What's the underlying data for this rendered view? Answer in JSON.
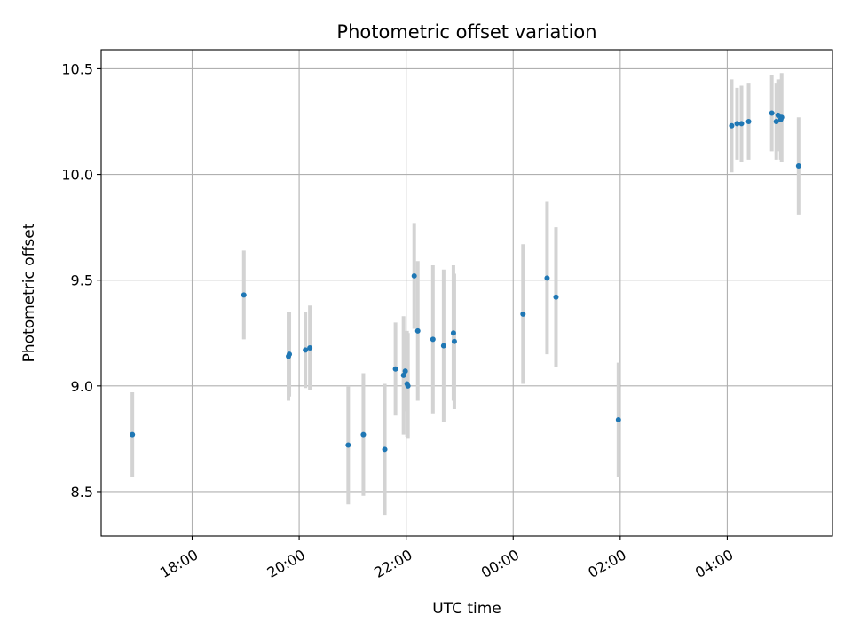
{
  "chart_data": {
    "type": "scatter",
    "title": "Photometric offset variation",
    "xlabel": "UTC time",
    "ylabel": "Photometric offset",
    "x_ticks": [
      "18:00",
      "20:00",
      "22:00",
      "00:00",
      "02:00",
      "04:00"
    ],
    "y_ticks": [
      "8.5",
      "9.0",
      "9.5",
      "10.0",
      "10.5"
    ],
    "xlim": [
      "16:18",
      "05:58"
    ],
    "ylim": [
      8.29,
      10.59
    ],
    "grid": true,
    "legend": "none",
    "colors": {
      "points": "#1f77b4",
      "errorbars": "#d3d3d3"
    },
    "points": [
      {
        "x": "16:53",
        "y": 8.77,
        "yerr": 0.2
      },
      {
        "x": "18:58",
        "y": 9.43,
        "yerr": 0.21
      },
      {
        "x": "19:48",
        "y": 9.14,
        "yerr": 0.21
      },
      {
        "x": "19:49",
        "y": 9.15,
        "yerr": 0.2
      },
      {
        "x": "20:07",
        "y": 9.17,
        "yerr": 0.18
      },
      {
        "x": "20:12",
        "y": 9.18,
        "yerr": 0.2
      },
      {
        "x": "20:55",
        "y": 8.72,
        "yerr": 0.28
      },
      {
        "x": "21:12",
        "y": 8.77,
        "yerr": 0.29
      },
      {
        "x": "21:36",
        "y": 8.7,
        "yerr": 0.31
      },
      {
        "x": "21:48",
        "y": 9.08,
        "yerr": 0.22
      },
      {
        "x": "21:57",
        "y": 9.05,
        "yerr": 0.28
      },
      {
        "x": "21:59",
        "y": 9.07,
        "yerr": 0.19
      },
      {
        "x": "22:01",
        "y": 9.01,
        "yerr": 0.25
      },
      {
        "x": "22:02",
        "y": 9.0,
        "yerr": 0.25
      },
      {
        "x": "22:09",
        "y": 9.52,
        "yerr": 0.25
      },
      {
        "x": "22:13",
        "y": 9.26,
        "yerr": 0.33
      },
      {
        "x": "22:30",
        "y": 9.22,
        "yerr": 0.35
      },
      {
        "x": "22:42",
        "y": 9.19,
        "yerr": 0.36
      },
      {
        "x": "22:53",
        "y": 9.25,
        "yerr": 0.32
      },
      {
        "x": "22:54",
        "y": 9.21,
        "yerr": 0.32
      },
      {
        "x": "00:11",
        "y": 9.34,
        "yerr": 0.33
      },
      {
        "x": "00:38",
        "y": 9.51,
        "yerr": 0.36
      },
      {
        "x": "00:48",
        "y": 9.42,
        "yerr": 0.33
      },
      {
        "x": "01:58",
        "y": 8.84,
        "yerr": 0.27
      },
      {
        "x": "04:05",
        "y": 10.23,
        "yerr": 0.22
      },
      {
        "x": "04:11",
        "y": 10.24,
        "yerr": 0.17
      },
      {
        "x": "04:16",
        "y": 10.24,
        "yerr": 0.18
      },
      {
        "x": "04:24",
        "y": 10.25,
        "yerr": 0.18
      },
      {
        "x": "04:50",
        "y": 10.29,
        "yerr": 0.18
      },
      {
        "x": "04:55",
        "y": 10.25,
        "yerr": 0.18
      },
      {
        "x": "04:57",
        "y": 10.28,
        "yerr": 0.17
      },
      {
        "x": "05:00",
        "y": 10.26,
        "yerr": 0.19
      },
      {
        "x": "05:01",
        "y": 10.27,
        "yerr": 0.21
      },
      {
        "x": "05:20",
        "y": 10.04,
        "yerr": 0.23
      }
    ]
  }
}
